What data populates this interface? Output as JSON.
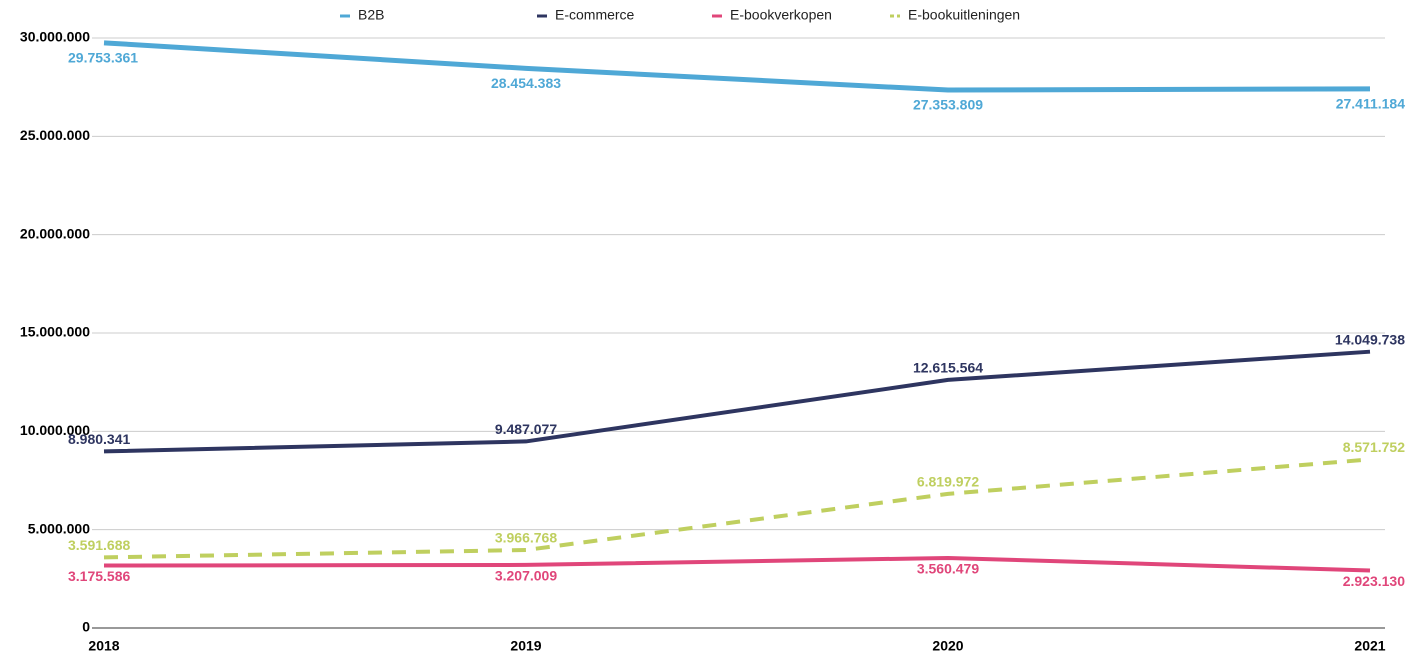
{
  "chart_data": {
    "type": "line",
    "categories": [
      "2018",
      "2019",
      "2020",
      "2021"
    ],
    "series": [
      {
        "name": "B2B",
        "color": "#4fa8d6",
        "values": [
          29753361,
          28454383,
          27353809,
          27411184
        ],
        "value_labels": [
          "29.753.361",
          "28.454.383",
          "27.353.809",
          "27.411.184"
        ]
      },
      {
        "name": "E-commerce",
        "color": "#2e3560",
        "values": [
          8980341,
          9487077,
          12615564,
          14049738
        ],
        "value_labels": [
          "8.980.341",
          "9.487.077",
          "12.615.564",
          "14.049.738"
        ]
      },
      {
        "name": "E-bookverkopen",
        "color": "#e0467a",
        "values": [
          3175586,
          3207009,
          3560479,
          2923130
        ],
        "value_labels": [
          "3.175.586",
          "3.207.009",
          "3.560.479",
          "2.923.130"
        ]
      },
      {
        "name": "E-bookuitleningen",
        "color": "#bfcf5f",
        "dashed": true,
        "values": [
          3591688,
          3966768,
          6819972,
          8571752
        ],
        "value_labels": [
          "3.591.688",
          "3.966.768",
          "6.819.972",
          "8.571.752"
        ]
      }
    ],
    "ylim": [
      0,
      30000000
    ],
    "yticks": [
      0,
      {
        "value": 5000000,
        "label": "5.000.000"
      },
      {
        "value": 10000000,
        "label": "10.000.000"
      },
      {
        "value": 15000000,
        "label": "15.000.000"
      },
      {
        "value": 20000000,
        "label": "20.000.000"
      },
      {
        "value": 25000000,
        "label": "25.000.000"
      },
      {
        "value": 30000000,
        "label": "30.000.000"
      }
    ],
    "grid": true,
    "legend": "top"
  }
}
